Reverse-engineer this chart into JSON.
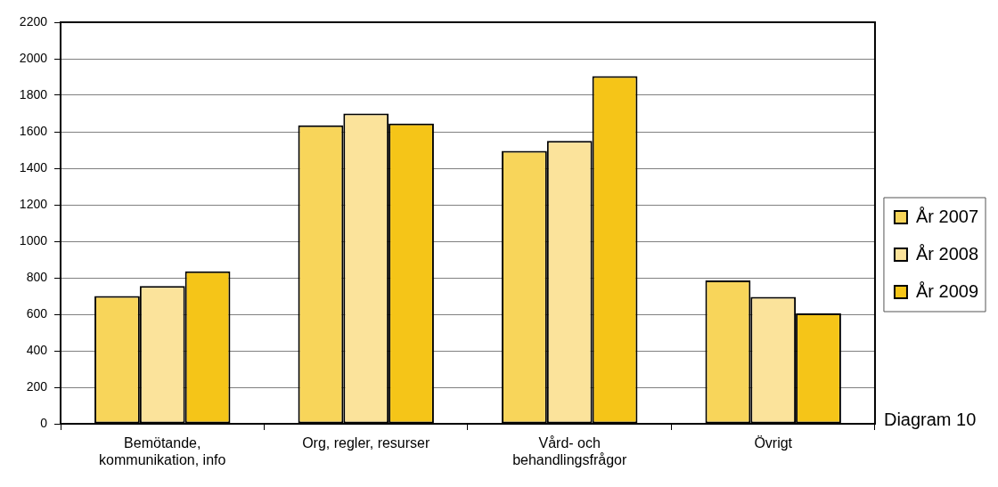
{
  "chart_data": {
    "type": "bar",
    "categories": [
      "Bemötande, kommunikation, info",
      "Org, regler, resurser",
      "Vård- och behandlingsfrågor",
      "Övrigt"
    ],
    "series": [
      {
        "name": "År 2007",
        "color": "#f8d55a",
        "values": [
          700,
          1635,
          1495,
          785
        ]
      },
      {
        "name": "År 2008",
        "color": "#fbe39b",
        "values": [
          755,
          1700,
          1550,
          695
        ]
      },
      {
        "name": "År 2009",
        "color": "#f5c518",
        "values": [
          835,
          1645,
          1905,
          605
        ]
      }
    ],
    "ylim": [
      0,
      2200
    ],
    "yticks": [
      0,
      200,
      400,
      600,
      800,
      1000,
      1200,
      1400,
      1600,
      1800,
      2000,
      2200
    ],
    "grid": "y",
    "legend": "right",
    "annotations": [
      "Diagram 10"
    ]
  }
}
